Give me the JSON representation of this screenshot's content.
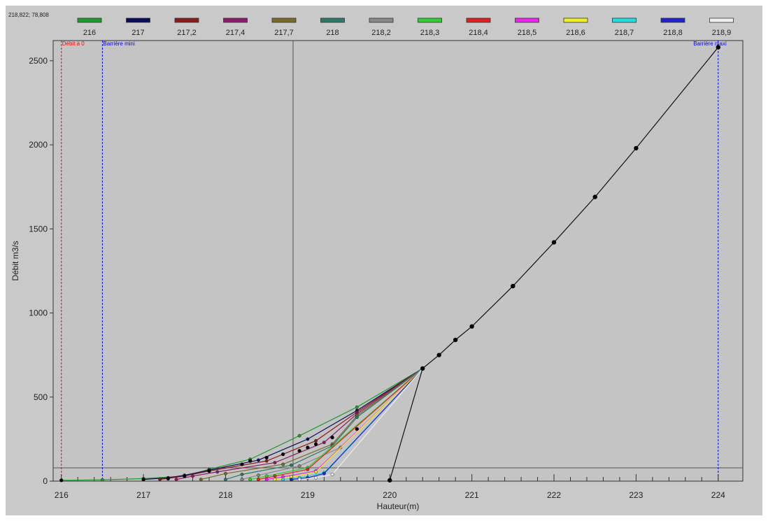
{
  "header": {
    "cursor_readout": "218,822; 78,808"
  },
  "chart_data": {
    "type": "line",
    "xlabel": "Hauteur(m)",
    "ylabel": "Débit m3/s",
    "xlim": [
      215.9,
      224.3
    ],
    "ylim": [
      0,
      2620
    ],
    "x_ticks": [
      "216",
      "217",
      "218",
      "219",
      "220",
      "221",
      "222",
      "223",
      "224"
    ],
    "y_ticks": [
      "0",
      "500",
      "1000",
      "1500",
      "2000",
      "2500"
    ],
    "legend_position": "top",
    "markers": [
      {
        "label": "Débit à 0",
        "x": 216.0,
        "color": "#ff0000"
      },
      {
        "label": "Barrière mini",
        "x": 216.5,
        "color": "#0000ff"
      },
      {
        "label": "Barrière maxi",
        "x": 224.0,
        "color": "#0000ff"
      }
    ],
    "cursor": {
      "x": 218.822,
      "y": 78.808
    },
    "series": [
      {
        "name": "216",
        "color": "#1e9b2e",
        "x": [
          216.0,
          216.5,
          217.0,
          217.5,
          217.8,
          218.3,
          218.9,
          219.6,
          220.4
        ],
        "y": [
          5,
          8,
          15,
          30,
          70,
          130,
          270,
          440,
          670
        ]
      },
      {
        "name": "217",
        "color": "#0a0a5a",
        "x": [
          217.0,
          217.3,
          217.5,
          217.8,
          218.4,
          219.0,
          219.6,
          220.4
        ],
        "y": [
          10,
          20,
          35,
          65,
          125,
          250,
          420,
          670
        ]
      },
      {
        "name": "217,2",
        "color": "#8b1a1a",
        "x": [
          217.2,
          217.5,
          217.8,
          218.5,
          219.1,
          219.6,
          220.4
        ],
        "y": [
          10,
          30,
          60,
          120,
          240,
          410,
          670
        ]
      },
      {
        "name": "217,4",
        "color": "#8b1a6a",
        "x": [
          217.4,
          217.6,
          217.9,
          218.6,
          219.2,
          219.6,
          220.4
        ],
        "y": [
          10,
          30,
          55,
          110,
          230,
          400,
          670
        ]
      },
      {
        "name": "217,7",
        "color": "#7a6a2a",
        "x": [
          217.7,
          218.0,
          218.7,
          219.3,
          219.6,
          220.4
        ],
        "y": [
          10,
          45,
          100,
          220,
          390,
          670
        ]
      },
      {
        "name": "218",
        "color": "#2a7a6a",
        "x": [
          218.0,
          218.2,
          218.8,
          219.3,
          219.6,
          220.4
        ],
        "y": [
          10,
          40,
          95,
          210,
          380,
          670
        ]
      },
      {
        "name": "218,2",
        "color": "#888888",
        "x": [
          218.2,
          218.4,
          218.9,
          219.4,
          220.4
        ],
        "y": [
          10,
          35,
          90,
          200,
          670
        ]
      },
      {
        "name": "218,3",
        "color": "#33cc33",
        "x": [
          218.3,
          218.5,
          219.0,
          220.4
        ],
        "y": [
          10,
          30,
          80,
          670
        ]
      },
      {
        "name": "218,4",
        "color": "#dd2222",
        "x": [
          218.4,
          218.6,
          219.0,
          220.4
        ],
        "y": [
          10,
          30,
          70,
          670
        ]
      },
      {
        "name": "218,5",
        "color": "#ee22ee",
        "x": [
          218.5,
          218.7,
          219.1,
          220.4
        ],
        "y": [
          10,
          25,
          60,
          670
        ]
      },
      {
        "name": "218,6",
        "color": "#eeee22",
        "x": [
          218.6,
          218.8,
          219.1,
          220.4
        ],
        "y": [
          10,
          25,
          55,
          670
        ]
      },
      {
        "name": "218,7",
        "color": "#22dddd",
        "x": [
          218.7,
          218.9,
          219.2,
          220.4
        ],
        "y": [
          10,
          20,
          50,
          670
        ]
      },
      {
        "name": "218,8",
        "color": "#2222cc",
        "x": [
          218.8,
          219.0,
          219.2,
          220.4
        ],
        "y": [
          10,
          20,
          45,
          670
        ]
      },
      {
        "name": "218,9",
        "color": "#eeeeee",
        "x": [
          218.9,
          219.1,
          219.3,
          220.4
        ],
        "y": [
          10,
          20,
          40,
          670
        ]
      }
    ],
    "main_curve": {
      "color": "#111111",
      "x": [
        220.0,
        220.4,
        220.6,
        220.8,
        221.0,
        221.5,
        222.0,
        222.5,
        223.0,
        224.0
      ],
      "y": [
        5,
        670,
        750,
        840,
        920,
        1160,
        1420,
        1690,
        1980,
        2580
      ]
    },
    "black_dots": [
      [
        216.0,
        5
      ],
      [
        217.0,
        10
      ],
      [
        217.3,
        15
      ],
      [
        217.5,
        30
      ],
      [
        217.8,
        60
      ],
      [
        218.2,
        100
      ],
      [
        218.3,
        120
      ],
      [
        218.5,
        140
      ],
      [
        218.7,
        160
      ],
      [
        218.9,
        180
      ],
      [
        219.0,
        200
      ],
      [
        219.1,
        220
      ],
      [
        219.3,
        260
      ],
      [
        219.6,
        310
      ],
      [
        220.0,
        5
      ]
    ]
  }
}
